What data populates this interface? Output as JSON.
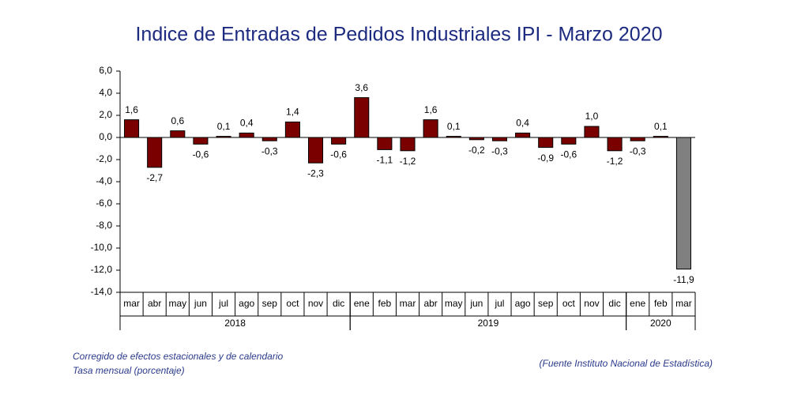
{
  "chart_data": {
    "type": "bar",
    "title": "Indice de Entradas de Pedidos Industriales IPI - Marzo 2020",
    "groups": [
      {
        "label": "2018",
        "categories": [
          "mar",
          "abr",
          "may",
          "jun",
          "jul",
          "ago",
          "sep",
          "oct",
          "nov",
          "dic"
        ]
      },
      {
        "label": "2019",
        "categories": [
          "ene",
          "feb",
          "mar",
          "abr",
          "may",
          "jun",
          "jul",
          "ago",
          "sep",
          "oct",
          "nov",
          "dic"
        ]
      },
      {
        "label": "2020",
        "categories": [
          "ene",
          "feb",
          "mar"
        ]
      }
    ],
    "values": [
      1.6,
      -2.7,
      0.6,
      -0.6,
      0.1,
      0.4,
      -0.3,
      1.4,
      -2.3,
      -0.6,
      3.6,
      -1.1,
      -1.2,
      1.6,
      0.1,
      -0.2,
      -0.3,
      0.4,
      -0.9,
      -0.6,
      1.0,
      -1.2,
      -0.3,
      0.1,
      -11.9
    ],
    "value_labels": [
      "1,6",
      "-2,7",
      "0,6",
      "-0,6",
      "0,1",
      "0,4",
      "-0,3",
      "1,4",
      "-2,3",
      "-0,6",
      "3,6",
      "-1,1",
      "-1,2",
      "1,6",
      "0,1",
      "-0,2",
      "-0,3",
      "0,4",
      "-0,9",
      "-0,6",
      "1,0",
      "-1,2",
      "-0,3",
      "0,1",
      "-11,9"
    ],
    "colors": [
      "#7a0000",
      "#7a0000",
      "#7a0000",
      "#7a0000",
      "#7a0000",
      "#7a0000",
      "#7a0000",
      "#7a0000",
      "#7a0000",
      "#7a0000",
      "#7a0000",
      "#7a0000",
      "#7a0000",
      "#7a0000",
      "#7a0000",
      "#7a0000",
      "#7a0000",
      "#7a0000",
      "#7a0000",
      "#7a0000",
      "#7a0000",
      "#7a0000",
      "#7a0000",
      "#7a0000",
      "#808080"
    ],
    "ylim": [
      -14,
      6
    ],
    "yticks": [
      {
        "value": 6,
        "label": "6,0"
      },
      {
        "value": 4,
        "label": "4,0"
      },
      {
        "value": 2,
        "label": "2,0"
      },
      {
        "value": 0,
        "label": "0,0"
      },
      {
        "value": -2,
        "label": "-2,0"
      },
      {
        "value": -4,
        "label": "-4,0"
      },
      {
        "value": -6,
        "label": "-6,0"
      },
      {
        "value": -8,
        "label": "-8,0"
      },
      {
        "value": -10,
        "label": "-10,0"
      },
      {
        "value": -12,
        "label": "-12,0"
      },
      {
        "value": -14,
        "label": "-14,0"
      }
    ],
    "notes": [
      "Corregido de efectos estacionales y de calendario",
      "Tasa mensual (porcentaje)"
    ],
    "source": "(Fuente Instituto Nacional de Estadística)"
  }
}
